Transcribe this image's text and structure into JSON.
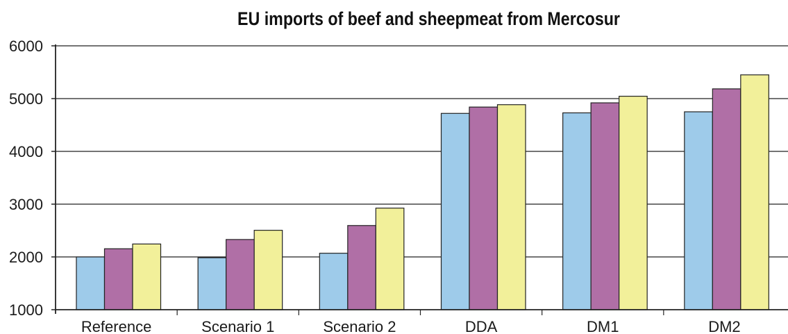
{
  "chart_data": {
    "type": "bar",
    "title": "EU imports of beef and sheepmeat from Mercosur",
    "xlabel": "",
    "ylabel": "",
    "ylim": [
      1000,
      6000
    ],
    "yticks": [
      "1000",
      "2000",
      "3000",
      "4000",
      "5000",
      "6000"
    ],
    "categories": [
      "Reference",
      "Scenario 1",
      "Scenario 2",
      "DDA",
      "DM1",
      "DM2"
    ],
    "series": [
      {
        "values": [
          2000,
          1985,
          2070,
          4720,
          4730,
          4750
        ]
      },
      {
        "values": [
          2155,
          2330,
          2595,
          4840,
          4920,
          5185
        ]
      },
      {
        "values": [
          2245,
          2505,
          2925,
          4885,
          5045,
          5450
        ]
      }
    ],
    "grid": true,
    "legend": "none",
    "colors": {
      "series": [
        "#9ecbea",
        "#b06fa6",
        "#f2f09a"
      ],
      "bar_stroke": "#222222",
      "grid": "#222222",
      "axis": "#222222",
      "background": "#ffffff"
    }
  }
}
